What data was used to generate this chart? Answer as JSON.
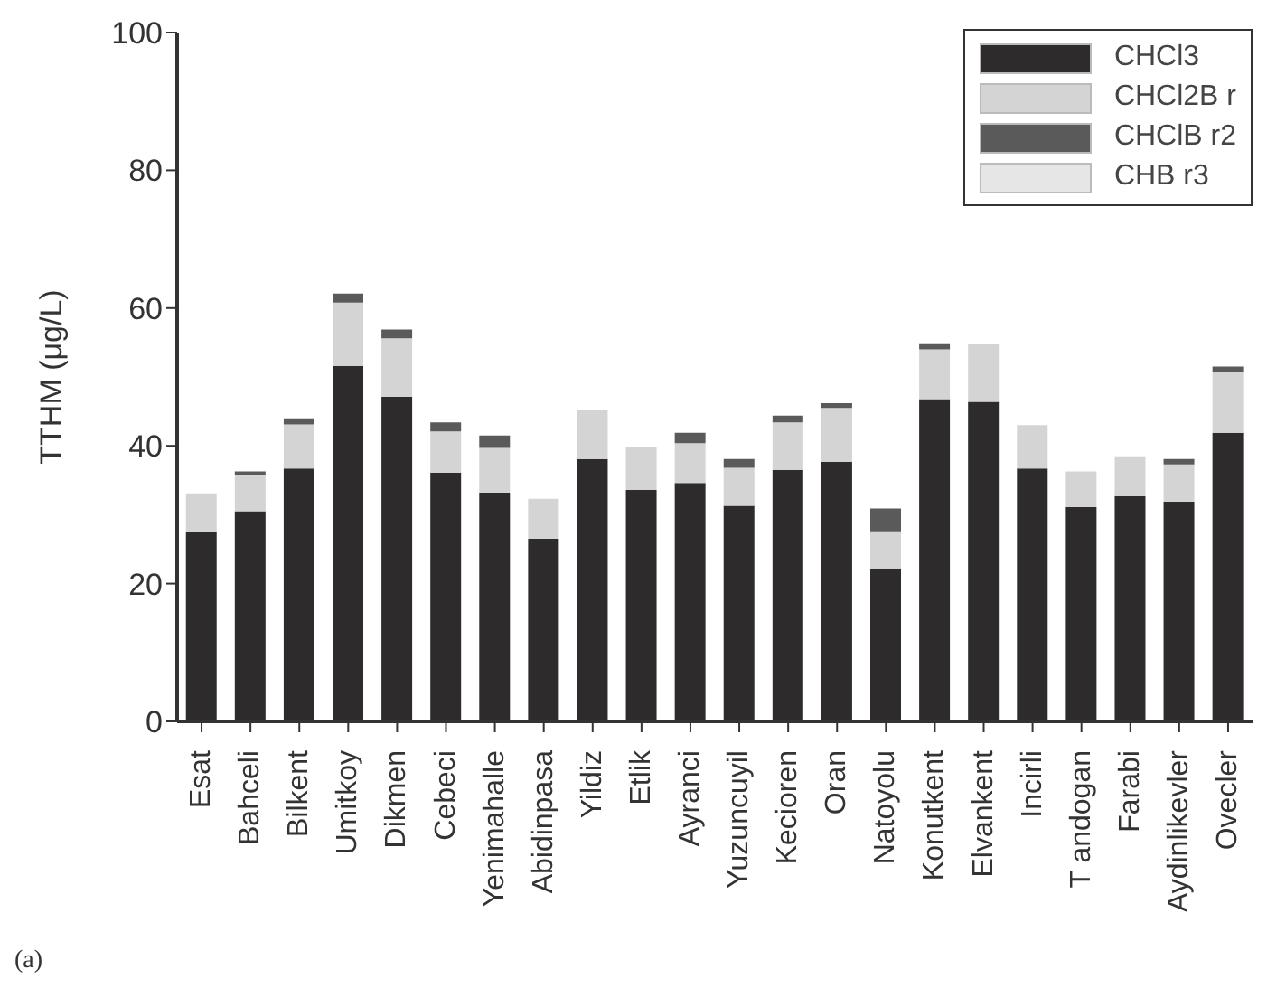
{
  "chart_data": {
    "type": "bar",
    "stacked": true,
    "ylabel": "TTHM (μg/L)",
    "ylim": [
      0,
      100
    ],
    "yticks": [
      0,
      20,
      40,
      60,
      80,
      100
    ],
    "legend": "top right",
    "annotations": [
      "(a)"
    ],
    "categories": [
      "Esat",
      "Bahceli",
      "Bilkent",
      "Umitkoy",
      "Dikmen",
      "Cebeci",
      "Yenimahalle",
      "Abidinpasa",
      "Yildiz",
      "Etlik",
      "Ayranci",
      "Yuzuncuyil",
      "Kecioren",
      "Oran",
      "Natoyolu",
      "Konutkent",
      "Elvankent",
      "Incirli",
      "T andogan",
      "Farabi",
      "Aydinlikevler",
      "Ovecler"
    ],
    "series": [
      {
        "name": "CHCl3",
        "color": "#2e2b2c",
        "values": [
          27.5,
          30.5,
          36.7,
          51.6,
          47.1,
          36.1,
          33.2,
          26.5,
          38.1,
          33.6,
          34.6,
          31.3,
          36.5,
          37.7,
          22.2,
          46.8,
          46.4,
          36.7,
          31.1,
          32.7,
          31.9,
          41.9
        ]
      },
      {
        "name": "CHCl2B r",
        "color": "#d4d4d4",
        "values": [
          5.6,
          5.3,
          6.4,
          9.2,
          8.5,
          6.0,
          6.5,
          5.8,
          7.1,
          6.3,
          5.8,
          5.5,
          6.9,
          7.8,
          5.4,
          7.2,
          8.4,
          6.3,
          5.2,
          5.8,
          5.4,
          8.8
        ]
      },
      {
        "name": "CHClB r2",
        "color": "#5a5a5a",
        "values": [
          0,
          0.5,
          0.9,
          1.3,
          1.3,
          1.3,
          1.8,
          0,
          0,
          0,
          1.5,
          1.3,
          1.0,
          0.7,
          3.3,
          0.9,
          0,
          0,
          0,
          0,
          0.8,
          0.8
        ]
      },
      {
        "name": "CHB r3",
        "color": "#e6e6e6",
        "values": [
          0,
          0,
          0,
          0,
          0,
          0,
          0,
          0,
          0,
          0,
          0,
          0,
          0,
          0,
          0,
          0,
          0,
          0,
          0,
          0,
          0,
          0
        ]
      }
    ]
  }
}
